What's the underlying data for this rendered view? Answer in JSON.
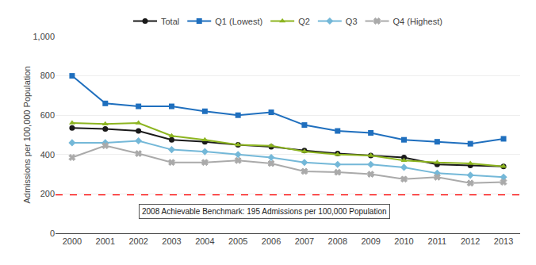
{
  "chart_data": {
    "type": "line",
    "y_label": "Admissions per 100,000 Population",
    "x": [
      2000,
      2001,
      2002,
      2003,
      2004,
      2005,
      2006,
      2007,
      2008,
      2009,
      2010,
      2011,
      2012,
      2013
    ],
    "series": [
      {
        "name": "Total",
        "color": "#1a1a1a",
        "marker": "circle",
        "line_style": "solid",
        "values": [
          535,
          530,
          520,
          475,
          465,
          450,
          440,
          420,
          405,
          395,
          385,
          350,
          345,
          340
        ]
      },
      {
        "name": "Q1 (Lowest)",
        "color": "#1f6fbe",
        "marker": "square",
        "line_style": "solid",
        "values": [
          800,
          660,
          645,
          645,
          620,
          600,
          615,
          550,
          520,
          510,
          475,
          465,
          455,
          480
        ]
      },
      {
        "name": "Q2",
        "color": "#8db520",
        "marker": "triangle-up",
        "line_style": "solid",
        "values": [
          560,
          555,
          560,
          495,
          475,
          450,
          445,
          415,
          400,
          395,
          370,
          360,
          355,
          340
        ]
      },
      {
        "name": "Q3",
        "color": "#74b8d8",
        "marker": "diamond",
        "line_style": "solid",
        "values": [
          460,
          460,
          470,
          425,
          415,
          400,
          385,
          360,
          350,
          350,
          335,
          305,
          295,
          285
        ]
      },
      {
        "name": "Q4 (Highest)",
        "color": "#aaaaaa",
        "marker": "x",
        "line_style": "solid",
        "values": [
          385,
          445,
          405,
          360,
          360,
          370,
          355,
          315,
          310,
          300,
          275,
          285,
          255,
          260
        ]
      }
    ],
    "reference_lines": [
      {
        "value": 195,
        "color": "red",
        "line_style": "dashed"
      }
    ],
    "annotations": [
      {
        "text": "2008 Achievable Benchmark: 195 Admissions per 100,000 Population",
        "x": 2002.0,
        "y": 110
      }
    ],
    "xlim": [
      1999.5,
      2013.5
    ],
    "xticks": [
      2000,
      2001,
      2002,
      2003,
      2004,
      2005,
      2006,
      2007,
      2008,
      2009,
      2010,
      2011,
      2012,
      2013
    ],
    "ylim": [
      0,
      1000
    ],
    "yticks": [
      0,
      200,
      400,
      600,
      800,
      {
        "value": 1000,
        "label": "1,000"
      }
    ],
    "grid": "y",
    "legend": "top"
  }
}
